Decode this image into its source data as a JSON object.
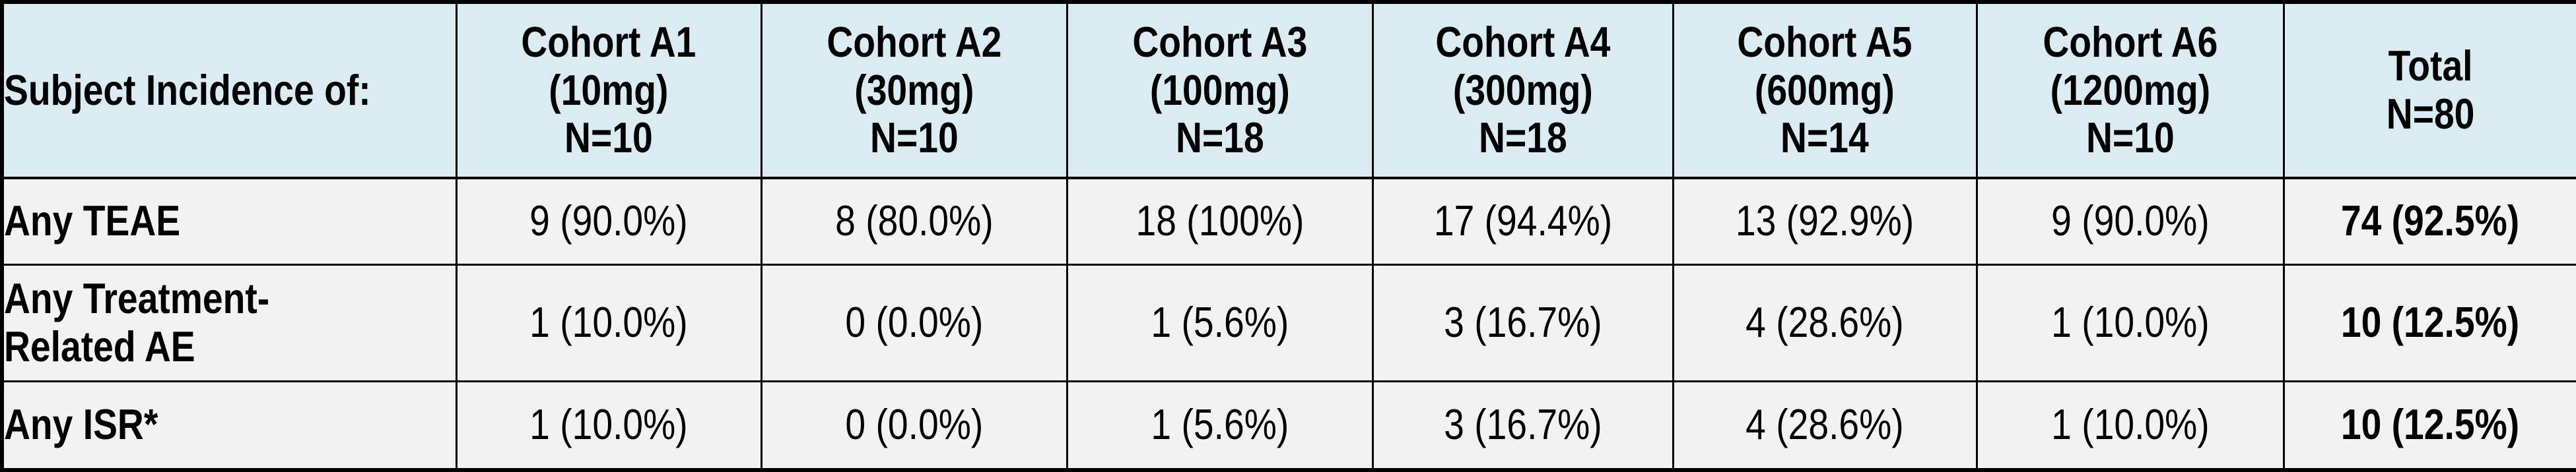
{
  "table": {
    "colors": {
      "header_bg": "#daebf1",
      "body_bg": "#f2f2f2",
      "border": "#000000",
      "text": "#000000"
    },
    "header": {
      "corner": "Subject Incidence of:",
      "cohorts": [
        "Cohort A1\n(10mg)\nN=10",
        "Cohort A2\n(30mg)\nN=10",
        "Cohort A3\n(100mg)\nN=18",
        "Cohort A4\n(300mg)\nN=18",
        "Cohort A5\n(600mg)\nN=14",
        "Cohort A6\n(1200mg)\nN=10"
      ],
      "total": "Total\nN=80"
    },
    "rows": [
      {
        "label": "Any TEAE",
        "values": [
          "9 (90.0%)",
          "8 (80.0%)",
          "18 (100%)",
          "17 (94.4%)",
          "13 (92.9%)",
          "9 (90.0%)"
        ],
        "total": "74 (92.5%)"
      },
      {
        "label": "Any Treatment-\nRelated AE",
        "values": [
          "1 (10.0%)",
          "0 (0.0%)",
          "1 (5.6%)",
          "3 (16.7%)",
          "4 (28.6%)",
          "1 (10.0%)"
        ],
        "total": "10 (12.5%)"
      },
      {
        "label": "Any ISR*",
        "values": [
          "1 (10.0%)",
          "0 (0.0%)",
          "1 (5.6%)",
          "3 (16.7%)",
          "4 (28.6%)",
          "1 (10.0%)"
        ],
        "total": "10 (12.5%)"
      }
    ]
  }
}
